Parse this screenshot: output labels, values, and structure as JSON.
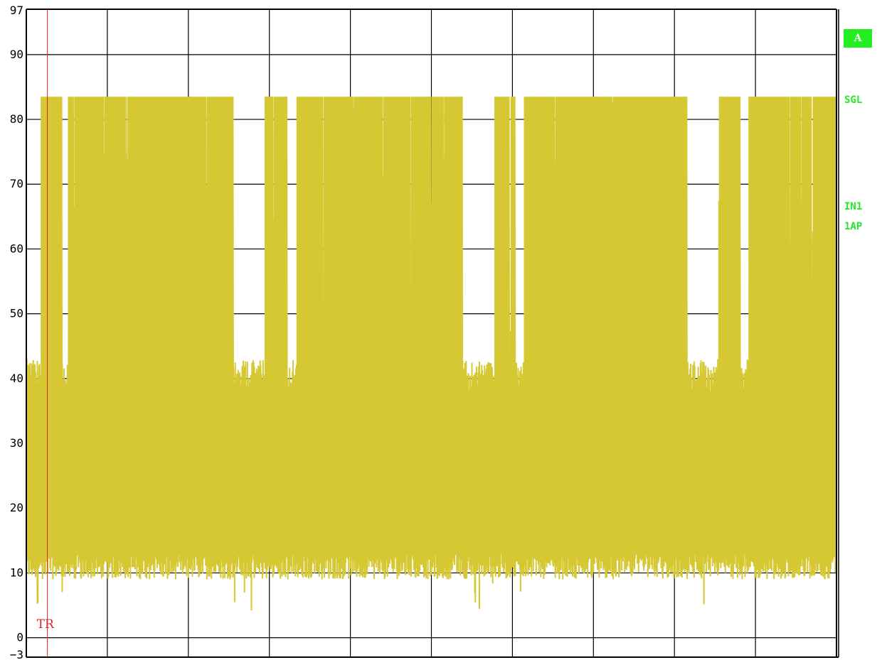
{
  "chart_data": {
    "type": "line",
    "title": "",
    "xlabel": "",
    "ylabel": "",
    "ylim": [
      -3,
      97
    ],
    "ytick_labels": [
      "97",
      "90",
      "80",
      "70",
      "60",
      "50",
      "40",
      "30",
      "20",
      "10",
      "0",
      "−3"
    ],
    "ytick_values": [
      97,
      90,
      80,
      70,
      60,
      50,
      40,
      30,
      20,
      10,
      0,
      -3
    ],
    "x_divisions": 10,
    "grid": true,
    "series": [
      {
        "color": "#d6c832",
        "baseline_range": [
          10,
          42
        ],
        "burst_level": 83.5,
        "burst_segments_percent": [
          [
            1.8,
            4.4
          ],
          [
            5.2,
            25.5
          ],
          [
            29.5,
            32.2
          ],
          [
            33.3,
            53.8
          ],
          [
            57.8,
            60.4
          ],
          [
            61.5,
            81.5
          ],
          [
            85.5,
            88.1
          ],
          [
            89.2,
            100
          ]
        ]
      }
    ],
    "trigger_marker": {
      "label": "TR",
      "x_percent": 2.6,
      "color": "#e02020"
    }
  },
  "side_panel": {
    "trace_badge": "A",
    "sweep_mode": "SGL",
    "input": "IN1",
    "detector": "1AP",
    "color": "#28e628"
  }
}
